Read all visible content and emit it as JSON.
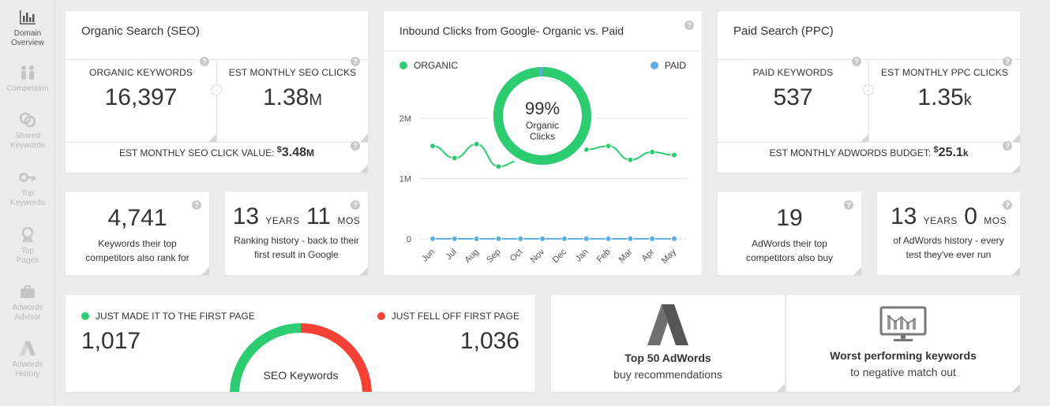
{
  "sidebar": {
    "items": [
      {
        "label": "Domain\nOverview",
        "icon": "bar-chart-icon",
        "active": true
      },
      {
        "label": "Competition",
        "icon": "competition-icon"
      },
      {
        "label": "Shared\nKeywords",
        "icon": "shared-keywords-icon"
      },
      {
        "label": "Top\nKeywords",
        "icon": "key-icon"
      },
      {
        "label": "Top\nPages",
        "icon": "ribbon-icon"
      },
      {
        "label": "Adwords\nAdvisor",
        "icon": "briefcase-icon"
      },
      {
        "label": "Adwords\nHistory",
        "icon": "adwords-icon"
      }
    ]
  },
  "seo": {
    "title": "Organic Search (SEO)",
    "keywords_label": "ORGANIC KEYWORDS",
    "keywords_value": "16,397",
    "clicks_label": "EST MONTHLY SEO CLICKS",
    "clicks_value": "1.38",
    "clicks_unit": "M",
    "click_value_label": "EST MONTHLY SEO CLICK VALUE:",
    "click_value_currency": "$",
    "click_value": "3.48",
    "click_value_unit": "M"
  },
  "ppc": {
    "title": "Paid Search (PPC)",
    "keywords_label": "PAID KEYWORDS",
    "keywords_value": "537",
    "clicks_label": "EST MONTHLY PPC CLICKS",
    "clicks_value": "1.35",
    "clicks_unit": "k",
    "budget_label": "EST MONTHLY ADWORDS BUDGET:",
    "budget_currency": "$",
    "budget_value": "25.1",
    "budget_unit": "k"
  },
  "competitors_seo": {
    "value": "4,741",
    "desc_line1": "Keywords their top",
    "desc_line2": "competitors also rank for"
  },
  "ranking_history": {
    "years": "13",
    "years_label": "YEARS",
    "months": "11",
    "months_label": "MOS",
    "desc_line1": "Ranking history - back to their",
    "desc_line2": "first result in Google"
  },
  "competitors_ppc": {
    "value": "19",
    "desc_line1": "AdWords their top",
    "desc_line2": "competitors also buy"
  },
  "adwords_history": {
    "years": "13",
    "years_label": "YEARS",
    "months": "0",
    "months_label": "MOS",
    "desc_line1": "of AdWords history - every",
    "desc_line2": "test they've ever run"
  },
  "inbound": {
    "title": "Inbound Clicks from Google- Organic vs. Paid",
    "legend_organic": "ORGANIC",
    "legend_paid": "PAID",
    "donut_pct": "99%",
    "donut_label1": "Organic",
    "donut_label2": "Clicks",
    "organic_fraction": 0.99
  },
  "chart_data": {
    "type": "line",
    "categories": [
      "Jun",
      "Jul",
      "Aug",
      "Sep",
      "Oct",
      "Nov",
      "Dec",
      "Jan",
      "Feb",
      "Mar",
      "Apr",
      "May"
    ],
    "yticks": [
      "2M",
      "1M",
      "0"
    ],
    "ylim": [
      0,
      2000000
    ],
    "series": [
      {
        "name": "ORGANIC",
        "color": "#2ecc71",
        "values": [
          1540000,
          1340000,
          1570000,
          1200000,
          1300000,
          1420000,
          1460000,
          1480000,
          1540000,
          1310000,
          1440000,
          1390000
        ]
      },
      {
        "name": "PAID",
        "color": "#5dade2",
        "values": [
          1350,
          1350,
          1350,
          1350,
          1350,
          1350,
          1350,
          1350,
          1350,
          1350,
          1350,
          1350
        ]
      }
    ]
  },
  "first_page": {
    "made_label": "JUST MADE IT TO THE FIRST PAGE",
    "made_value": "1,017",
    "fell_label": "JUST FELL OFF FIRST PAGE",
    "fell_value": "1,036",
    "center_label": "SEO Keywords",
    "made_color": "#2ecc71",
    "fell_color": "#f44336"
  },
  "features": {
    "adwords_title": "Top 50 AdWords",
    "adwords_sub": "buy recommendations",
    "worst_title": "Worst performing keywords",
    "worst_sub": "to negative match out"
  }
}
